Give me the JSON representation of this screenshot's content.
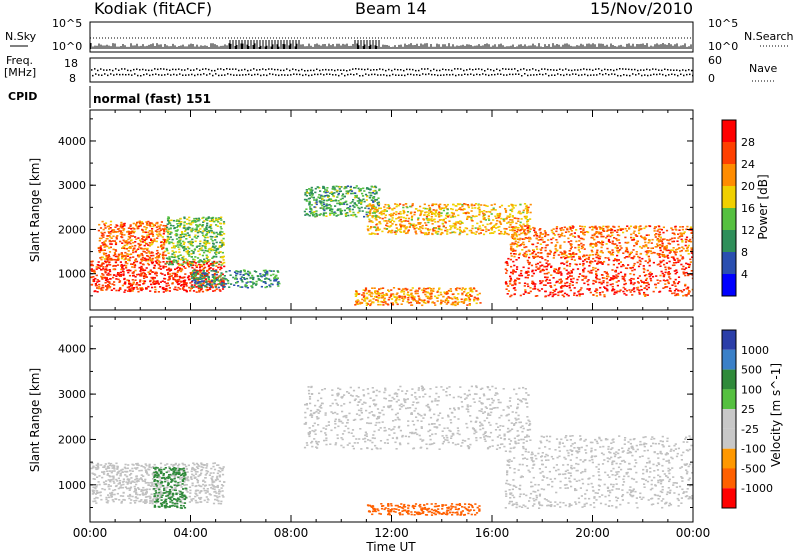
{
  "header": {
    "station": "Kodiak (fitACF)",
    "beam": "Beam 14",
    "date": "15/Nov/2010"
  },
  "summary_panels": {
    "nsky_label": "N.Sky",
    "nsearch_label": "N.Search",
    "count_ticks": [
      "10^5",
      "10^0"
    ],
    "count_ticks_right": [
      "10^5",
      "10^0"
    ],
    "freq_label_line1": "Freq.",
    "freq_label_line2": "[MHz]",
    "freq_ticks": [
      "18",
      "8"
    ],
    "nave_label": "Nave",
    "nave_ticks": [
      "60",
      "0"
    ],
    "cpid_label": "CPID",
    "cpid_value": "normal (fast) 151"
  },
  "colors": {
    "power_scale": [
      "#0000ff",
      "#2a4fb0",
      "#2f8f5a",
      "#55c040",
      "#f0d000",
      "#ff8c00",
      "#ff4000",
      "#ff0000"
    ],
    "velocity_scale": [
      "#2b3ea8",
      "#3a80c8",
      "#2f8a3a",
      "#55c040",
      "#c8c8c8",
      "#c8c8c8",
      "#ff9800",
      "#ff6000",
      "#ff0000"
    ],
    "ground_scatter": "#c0c0c0"
  },
  "chart_data": [
    {
      "type": "heatmap",
      "name": "power",
      "xlabel": "Time UT",
      "ylabel": "Slant Range [km]",
      "x_ticks": [
        "00:00",
        "04:00",
        "08:00",
        "12:00",
        "16:00",
        "20:00",
        "00:00"
      ],
      "x_range_hours": [
        0,
        24
      ],
      "y_ticks": [
        "1000",
        "2000",
        "3000",
        "4000"
      ],
      "ylim": [
        180,
        4700
      ],
      "colorbar_label": "Power [dB]",
      "colorbar_ticks": [
        "4",
        "8",
        "12",
        "16",
        "20",
        "24",
        "28"
      ],
      "colorbar_range": [
        0,
        32
      ],
      "features": [
        {
          "t0": 0.0,
          "t1": 5.3,
          "r0": 600,
          "r1": 1300,
          "value": 28
        },
        {
          "t0": 0.3,
          "t1": 3.0,
          "r0": 1300,
          "r1": 2200,
          "value": 24
        },
        {
          "t0": 3.0,
          "t1": 5.3,
          "r0": 1200,
          "r1": 2300,
          "value": 14
        },
        {
          "t0": 4.0,
          "t1": 7.5,
          "r0": 700,
          "r1": 1100,
          "value": 10
        },
        {
          "t0": 8.5,
          "t1": 11.5,
          "r0": 2300,
          "r1": 3000,
          "value": 12
        },
        {
          "t0": 11.0,
          "t1": 17.5,
          "r0": 1900,
          "r1": 2600,
          "value": 20
        },
        {
          "t0": 10.5,
          "t1": 15.5,
          "r0": 300,
          "r1": 700,
          "value": 22
        },
        {
          "t0": 16.5,
          "t1": 24.0,
          "r0": 500,
          "r1": 1400,
          "value": 28
        },
        {
          "t0": 16.7,
          "t1": 24.0,
          "r0": 1400,
          "r1": 2100,
          "value": 24
        }
      ]
    },
    {
      "type": "heatmap",
      "name": "velocity",
      "xlabel": "Time UT",
      "ylabel": "Slant Range [km]",
      "x_ticks": [
        "00:00",
        "04:00",
        "08:00",
        "12:00",
        "16:00",
        "20:00",
        "00:00"
      ],
      "x_range_hours": [
        0,
        24
      ],
      "y_ticks": [
        "1000",
        "2000",
        "3000",
        "4000"
      ],
      "ylim": [
        180,
        4700
      ],
      "colorbar_label": "Velocity [m s^-1]",
      "colorbar_ticks": [
        "1000",
        "500",
        "100",
        "25",
        "-25",
        "-100",
        "-500",
        "-1000"
      ],
      "features": [
        {
          "t0": 0.0,
          "t1": 5.3,
          "r0": 600,
          "r1": 1500,
          "value": 0
        },
        {
          "t0": 2.5,
          "t1": 3.8,
          "r0": 500,
          "r1": 1400,
          "value": 120
        },
        {
          "t0": 8.5,
          "t1": 17.5,
          "r0": 1800,
          "r1": 3200,
          "value": 0
        },
        {
          "t0": 11.0,
          "t1": 15.5,
          "r0": 350,
          "r1": 600,
          "value": -150
        },
        {
          "t0": 16.5,
          "t1": 24.0,
          "r0": 500,
          "r1": 2100,
          "value": 0
        }
      ]
    }
  ]
}
